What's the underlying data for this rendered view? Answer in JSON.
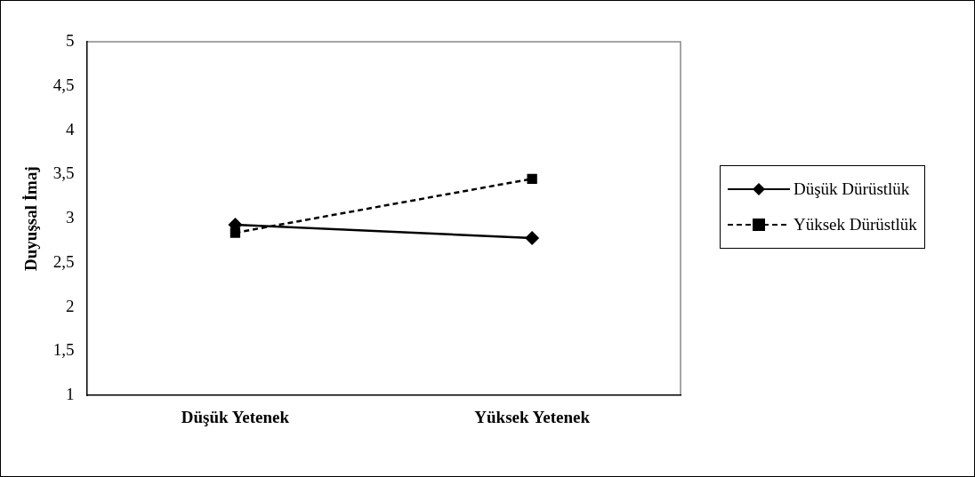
{
  "chart_data": {
    "type": "line",
    "ylabel": "Duyuşsal İmaj",
    "categories": [
      "Düşük Yetenek",
      "Yüksek Yetenek"
    ],
    "series": [
      {
        "name": "Düşük Dürüstlük",
        "color": "#000000",
        "values": [
          2.93,
          2.78
        ],
        "marker": "diamond",
        "line_style": "solid"
      },
      {
        "name": "Yüksek Dürüstlük",
        "color": "#000000",
        "values": [
          2.84,
          3.45
        ],
        "marker": "square",
        "line_style": "dashed"
      }
    ],
    "ylim": [
      1,
      5
    ],
    "yticks": [
      1,
      {
        "value": 1.5,
        "label": "1,5"
      },
      2,
      {
        "value": 2.5,
        "label": "2,5"
      },
      3,
      {
        "value": 3.5,
        "label": "3,5"
      },
      4,
      {
        "value": 4.5,
        "label": "4,5"
      },
      5
    ],
    "grid": false,
    "legend": "right"
  }
}
